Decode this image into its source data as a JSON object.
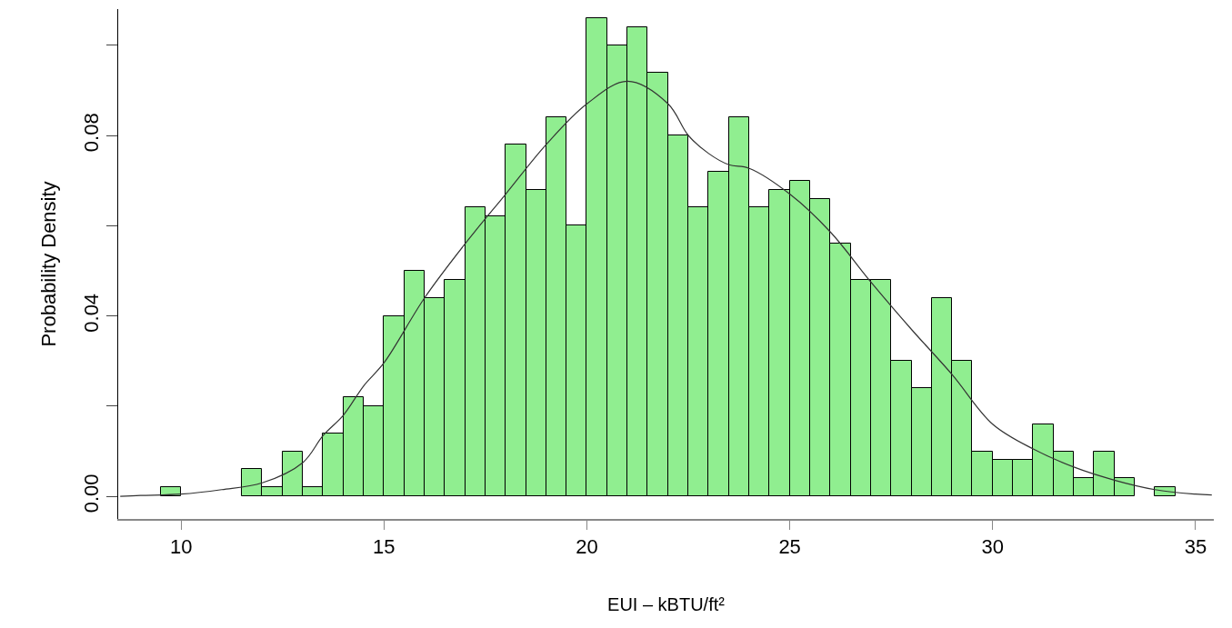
{
  "chart_data": {
    "type": "histogram",
    "xlabel": "EUI – kBTU/ft²",
    "ylabel": "Probability Density",
    "bins": [
      9.5,
      10,
      10.5,
      11,
      11.5,
      12,
      12.5,
      13,
      13.5,
      14,
      14.5,
      15,
      15.5,
      16,
      16.5,
      17,
      17.5,
      18,
      18.5,
      19,
      19.5,
      20,
      20.5,
      21,
      21.5,
      22,
      22.5,
      23,
      23.5,
      24,
      24.5,
      25,
      25.5,
      26,
      26.5,
      27,
      27.5,
      28,
      28.5,
      29,
      29.5,
      30,
      30.5,
      31,
      31.5,
      32,
      32.5,
      33,
      33.5,
      34,
      34.5
    ],
    "values": [
      0.002,
      0,
      0,
      0,
      0.006,
      0.002,
      0.01,
      0.002,
      0.014,
      0.022,
      0.02,
      0.04,
      0.05,
      0.044,
      0.048,
      0.064,
      0.062,
      0.078,
      0.068,
      0.084,
      0.06,
      0.106,
      0.1,
      0.104,
      0.094,
      0.08,
      0.064,
      0.072,
      0.084,
      0.064,
      0.068,
      0.07,
      0.066,
      0.056,
      0.048,
      0.048,
      0.03,
      0.024,
      0.044,
      0.03,
      0.01,
      0.008,
      0.008,
      0.016,
      0.01,
      0.004,
      0.01,
      0.004,
      0,
      0.002
    ],
    "color": "#90ee90",
    "series": [
      {
        "type": "line",
        "color": "#333333",
        "x": [
          8.5,
          9,
          10,
          11,
          12,
          13,
          13.5,
          14,
          14.5,
          15,
          16,
          17,
          18,
          19,
          20,
          21,
          22,
          22.5,
          23,
          23.5,
          24,
          25,
          26,
          27,
          28,
          29,
          30,
          31,
          32,
          33,
          34,
          35,
          35.4
        ],
        "values": [
          0,
          0.0002,
          0.0005,
          0.0015,
          0.003,
          0.0075,
          0.0135,
          0.018,
          0.0245,
          0.0296,
          0.044,
          0.056,
          0.067,
          0.078,
          0.087,
          0.092,
          0.087,
          0.08,
          0.076,
          0.0735,
          0.0727,
          0.067,
          0.0586,
          0.0475,
          0.037,
          0.027,
          0.016,
          0.0105,
          0.0065,
          0.0036,
          0.0015,
          0.0005,
          0.0003
        ]
      }
    ],
    "xlim": [
      8.45,
      35.45
    ],
    "ylim": [
      -0.005,
      0.108
    ],
    "xticks": [
      10,
      15,
      20,
      25,
      30,
      35
    ],
    "yticks": [
      {
        "value": 0,
        "label": "0.00"
      },
      {
        "value": 0.02,
        "label": null
      },
      {
        "value": 0.04,
        "label": "0.04"
      },
      {
        "value": 0.06,
        "label": null
      },
      {
        "value": 0.08,
        "label": "0.08"
      },
      {
        "value": 0.1,
        "label": null
      }
    ],
    "grid": false
  }
}
